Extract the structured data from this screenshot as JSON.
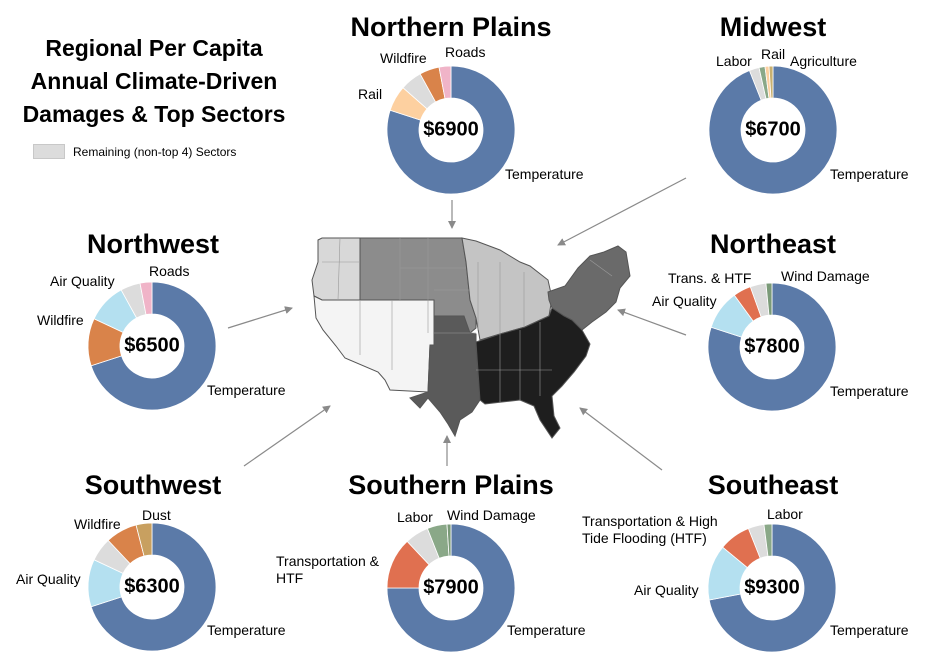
{
  "title": [
    "Regional Per Capita",
    "Annual Climate-Driven",
    "Damages & Top Sectors"
  ],
  "legend": {
    "label": "Remaining (non-top 4) Sectors",
    "color": "#dcdcdc"
  },
  "colors": {
    "Temperature": "#5b7aa8",
    "Rail": "#fdd0a0",
    "Wildfire": "#d9834a",
    "Roads": "#f0b4c8",
    "Labor": "#8aa888",
    "Agriculture": "#c8b070",
    "Air Quality": "#b4e0f0",
    "Trans. & HTF": "#e07050",
    "Wind Damage": "#7a9a78",
    "Dust": "#c8a060",
    "Transportation & HTF": "#e07050",
    "Transportation & High Tide Flooding (HTF)": "#e07050",
    "Remaining": "#dcdcdc"
  },
  "chart_data": [
    {
      "type": "pie",
      "region": "Northern Plains",
      "total": "$6900",
      "slices": [
        {
          "sector": "Temperature",
          "value": 80.0
        },
        {
          "sector": "Rail",
          "value": 6.5
        },
        {
          "sector": "Remaining",
          "value": 5.5
        },
        {
          "sector": "Wildfire",
          "value": 5.0
        },
        {
          "sector": "Roads",
          "value": 3.0
        }
      ]
    },
    {
      "type": "pie",
      "region": "Midwest",
      "total": "$6700",
      "slices": [
        {
          "sector": "Temperature",
          "value": 94.0
        },
        {
          "sector": "Remaining",
          "value": 2.5
        },
        {
          "sector": "Labor",
          "value": 1.5
        },
        {
          "sector": "Rail",
          "value": 1.0
        },
        {
          "sector": "Agriculture",
          "value": 1.0
        }
      ]
    },
    {
      "type": "pie",
      "region": "Northwest",
      "total": "$6500",
      "slices": [
        {
          "sector": "Temperature",
          "value": 70.0
        },
        {
          "sector": "Wildfire",
          "value": 12.0
        },
        {
          "sector": "Air Quality",
          "value": 10.0
        },
        {
          "sector": "Remaining",
          "value": 5.0
        },
        {
          "sector": "Roads",
          "value": 3.0
        }
      ]
    },
    {
      "type": "pie",
      "region": "Northeast",
      "total": "$7800",
      "slices": [
        {
          "sector": "Temperature",
          "value": 80.0
        },
        {
          "sector": "Air Quality",
          "value": 10.0
        },
        {
          "sector": "Trans. & HTF",
          "value": 4.5
        },
        {
          "sector": "Remaining",
          "value": 4.0
        },
        {
          "sector": "Wind Damage",
          "value": 1.5
        }
      ]
    },
    {
      "type": "pie",
      "region": "Southwest",
      "total": "$6300",
      "slices": [
        {
          "sector": "Temperature",
          "value": 70.0
        },
        {
          "sector": "Air Quality",
          "value": 12.0
        },
        {
          "sector": "Remaining",
          "value": 6.0
        },
        {
          "sector": "Wildfire",
          "value": 8.0
        },
        {
          "sector": "Dust",
          "value": 4.0
        }
      ]
    },
    {
      "type": "pie",
      "region": "Southern Plains",
      "total": "$7900",
      "slices": [
        {
          "sector": "Temperature",
          "value": 75.0
        },
        {
          "sector": "Transportation & HTF",
          "value": 13.0
        },
        {
          "sector": "Remaining",
          "value": 6.0
        },
        {
          "sector": "Labor",
          "value": 5.0
        },
        {
          "sector": "Wind Damage",
          "value": 1.0
        }
      ]
    },
    {
      "type": "pie",
      "region": "Southeast",
      "total": "$9300",
      "slices": [
        {
          "sector": "Temperature",
          "value": 72.0
        },
        {
          "sector": "Air Quality",
          "value": 14.0
        },
        {
          "sector": "Transportation & High Tide Flooding (HTF)",
          "value": 8.0
        },
        {
          "sector": "Remaining",
          "value": 4.0
        },
        {
          "sector": "Labor",
          "value": 2.0
        }
      ]
    }
  ],
  "map_regions": [
    {
      "region": "Northwest",
      "color": "#d8d8d8"
    },
    {
      "region": "Southwest",
      "color": "#f4f4f4"
    },
    {
      "region": "Northern Plains",
      "color": "#8c8c8c"
    },
    {
      "region": "Southern Plains",
      "color": "#5a5a5a"
    },
    {
      "region": "Midwest",
      "color": "#c4c4c4"
    },
    {
      "region": "Northeast",
      "color": "#6a6a6a"
    },
    {
      "region": "Southeast",
      "color": "#1e1e1e"
    }
  ]
}
